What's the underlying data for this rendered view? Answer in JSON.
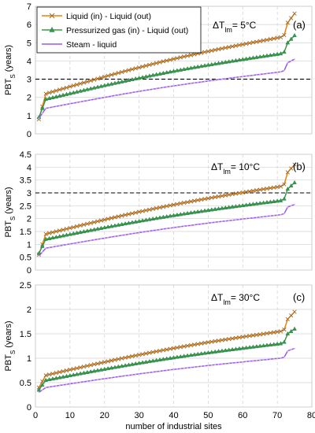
{
  "colors": {
    "liquid": "#e8830c",
    "liquid_marker": "#9b6a2e",
    "gas": "#3a9a3e",
    "gas_marker": "#2f7f62",
    "steam": "#9b59e6",
    "threshold": "#000000",
    "grid": "#d0d0d0",
    "axis": "#bfbfbf"
  },
  "chart_data": [
    {
      "type": "line",
      "panel_label": "(a)",
      "delta_t_main": "ΔT",
      "delta_t_sub": "lm",
      "delta_t_value": "= 5°C",
      "ylabel_main": "PBT",
      "ylabel_sub": "S",
      "ylabel_suffix": " (years)",
      "ylim": [
        0,
        7
      ],
      "yticks": [
        0,
        1,
        2,
        3,
        4,
        5,
        6,
        7
      ],
      "xlim": [
        0,
        80
      ],
      "threshold": 3,
      "grid": true,
      "legend": "top-left",
      "series": [
        {
          "name": "Liquid (in) - Liquid (out)",
          "color_key": "liquid",
          "marker": "x",
          "start": 0.8,
          "knot": 2.2,
          "end": 5.3,
          "jump": 6.1,
          "last": 6.6
        },
        {
          "name": "Pressurized gas (in) - Liquid (out)",
          "color_key": "gas",
          "marker": "triangle",
          "start": 0.9,
          "knot": 1.9,
          "end": 4.4,
          "jump": 5.0,
          "last": 5.4
        },
        {
          "name": "Steam - liquid",
          "color_key": "steam",
          "marker": "none",
          "start": 0.85,
          "knot": 1.4,
          "end": 3.4,
          "jump": 3.9,
          "last": 4.1
        }
      ]
    },
    {
      "type": "line",
      "panel_label": "(b)",
      "delta_t_main": "ΔT",
      "delta_t_sub": "lm",
      "delta_t_value": "= 10°C",
      "ylabel_main": "PBT",
      "ylabel_sub": "S",
      "ylabel_suffix": " (years)",
      "ylim": [
        0,
        4.5
      ],
      "yticks": [
        0,
        0.5,
        1,
        1.5,
        2,
        2.5,
        3,
        3.5,
        4,
        4.5
      ],
      "xlim": [
        0,
        80
      ],
      "threshold": 3,
      "grid": true,
      "series": [
        {
          "name": "Liquid (in) - Liquid (out)",
          "color_key": "liquid",
          "marker": "x",
          "start": 0.6,
          "knot": 1.4,
          "end": 3.25,
          "jump": 3.8,
          "last": 4.1
        },
        {
          "name": "Pressurized gas (in) - Liquid (out)",
          "color_key": "gas",
          "marker": "triangle",
          "start": 0.65,
          "knot": 1.2,
          "end": 2.7,
          "jump": 3.15,
          "last": 3.4
        },
        {
          "name": "Steam - liquid",
          "color_key": "steam",
          "marker": "none",
          "start": 0.55,
          "knot": 0.85,
          "end": 2.15,
          "jump": 2.45,
          "last": 2.55
        }
      ]
    },
    {
      "type": "line",
      "panel_label": "(c)",
      "delta_t_main": "ΔT",
      "delta_t_sub": "lm",
      "delta_t_value": "= 30°C",
      "ylabel_main": "PBT",
      "ylabel_sub": "S",
      "ylabel_suffix": " (years)",
      "ylim": [
        0,
        2.5
      ],
      "yticks": [
        0,
        0.5,
        1,
        1.5,
        2,
        2.5
      ],
      "xlim": [
        0,
        80
      ],
      "xticks": [
        0,
        10,
        20,
        30,
        40,
        50,
        60,
        70,
        80
      ],
      "xlabel": "number of industrial sites",
      "grid": true,
      "series": [
        {
          "name": "Liquid (in) - Liquid (out)",
          "color_key": "liquid",
          "marker": "x",
          "start": 0.4,
          "knot": 0.65,
          "end": 1.55,
          "jump": 1.8,
          "last": 1.95
        },
        {
          "name": "Pressurized gas (in) - Liquid (out)",
          "color_key": "gas",
          "marker": "triangle",
          "start": 0.35,
          "knot": 0.55,
          "end": 1.3,
          "jump": 1.5,
          "last": 1.6
        },
        {
          "name": "Steam - liquid",
          "color_key": "steam",
          "marker": "none",
          "start": 0.3,
          "knot": 0.4,
          "end": 1.0,
          "jump": 1.15,
          "last": 1.2
        }
      ]
    }
  ]
}
